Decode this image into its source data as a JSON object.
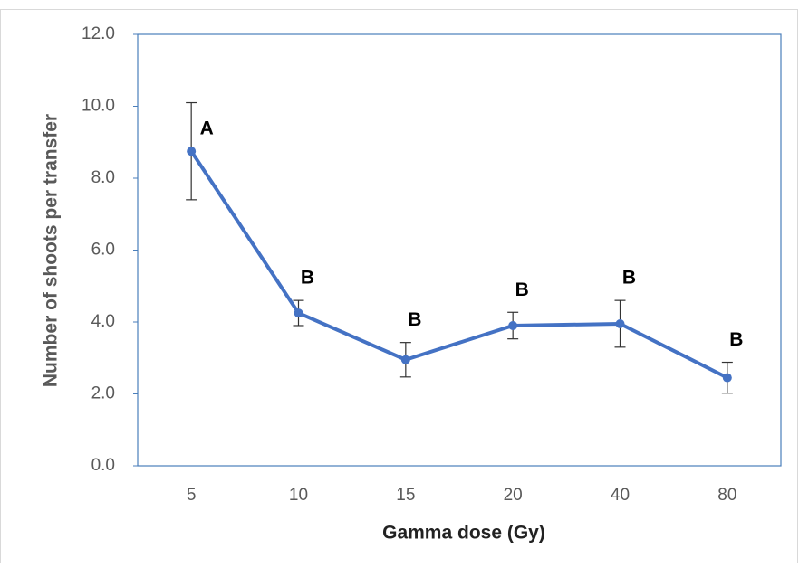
{
  "chart_data": {
    "type": "line",
    "x_label": "Gamma dose (Gy)",
    "y_label": "Number of shoots per transfer",
    "categories": [
      "5",
      "10",
      "15",
      "20",
      "40",
      "80"
    ],
    "series": [
      {
        "color": "#4472c4",
        "values": [
          8.75,
          4.25,
          2.95,
          3.9,
          3.95,
          2.45
        ],
        "errors": [
          1.35,
          0.35,
          0.48,
          0.37,
          0.65,
          0.43
        ]
      }
    ],
    "annotations": [
      "A",
      "B",
      "B",
      "B",
      "B",
      "B"
    ],
    "ylim": [
      0,
      12
    ],
    "yticks": [
      {
        "value": 0,
        "label": "0.0"
      },
      {
        "value": 2,
        "label": "2.0"
      },
      {
        "value": 4,
        "label": "4.0"
      },
      {
        "value": 6,
        "label": "6.0"
      },
      {
        "value": 8,
        "label": "8.0"
      },
      {
        "value": 10,
        "label": "10.0"
      },
      {
        "value": 12,
        "label": "12.0"
      }
    ]
  }
}
